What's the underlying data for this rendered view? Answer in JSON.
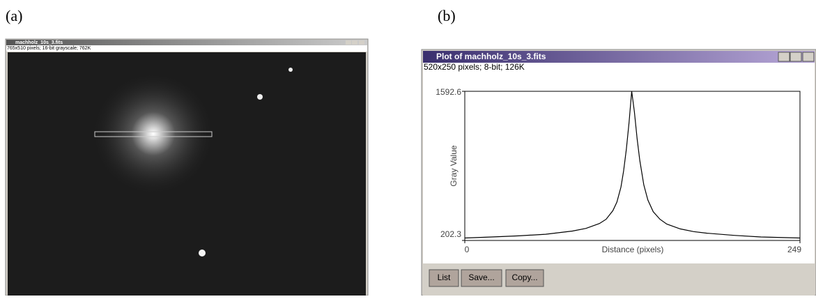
{
  "panels": [
    {
      "label": "(a)",
      "title": "machholz_10s_3.fits",
      "info": "765x510 pixels; 16-bit grayscale; 762K"
    },
    {
      "label": "(b)",
      "title": "Plot of machholz_10s_3.fits",
      "info": "520x250 pixels; 8-bit; 126K",
      "buttons": [
        "List",
        "Save...",
        "Copy..."
      ]
    }
  ],
  "chart_data": {
    "type": "line",
    "x_label": "Distance (pixels)",
    "y_label": "Gray Value",
    "xlim": [
      0,
      249
    ],
    "ylim": [
      202.3,
      1592.6
    ],
    "xticks": [
      0,
      249
    ],
    "yticks": [
      202.3,
      1592.6
    ],
    "x": [
      0,
      20,
      40,
      60,
      80,
      90,
      100,
      105,
      110,
      113,
      116,
      118,
      120,
      122,
      124,
      126,
      128,
      130,
      133,
      136,
      140,
      145,
      150,
      160,
      170,
      180,
      200,
      220,
      249
    ],
    "values": [
      225,
      235,
      245,
      260,
      290,
      315,
      360,
      400,
      480,
      560,
      700,
      850,
      1050,
      1300,
      1592.6,
      1400,
      1150,
      950,
      720,
      580,
      470,
      400,
      355,
      310,
      285,
      270,
      250,
      235,
      225
    ],
    "color": "#000000"
  }
}
